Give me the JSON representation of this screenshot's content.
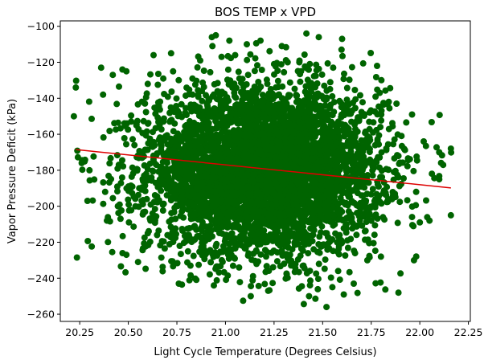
{
  "chart_data": {
    "type": "scatter",
    "title": "BOS TEMP x VPD",
    "xlabel": "Light Cycle Temperature (Degrees Celsius)",
    "ylabel": "Vapor Pressure Deficit (kPa)",
    "xlim": [
      20.15,
      22.26
    ],
    "ylim": [
      -264,
      -97
    ],
    "xticks": [
      20.25,
      20.5,
      20.75,
      21.0,
      21.25,
      21.5,
      21.75,
      22.0,
      22.25
    ],
    "xtick_labels": [
      "20.25",
      "20.50",
      "20.75",
      "21.00",
      "21.25",
      "21.50",
      "21.75",
      "22.00",
      "22.25"
    ],
    "yticks": [
      -260,
      -240,
      -220,
      -200,
      -180,
      -160,
      -140,
      -120,
      -100
    ],
    "ytick_labels": [
      "−260",
      "−240",
      "−220",
      "−200",
      "−180",
      "−160",
      "−140",
      "−120",
      "−100"
    ],
    "grid": false,
    "colors": {
      "points": "#006400",
      "trend": "#dd0000"
    },
    "trend_line": {
      "x": [
        20.23,
        22.16
      ],
      "y": [
        -168.5,
        -189.8
      ]
    },
    "cloud": {
      "x_center": 21.2,
      "x_sd": 0.3,
      "y_center": -180,
      "y_sd": 23,
      "count": 5000
    },
    "series": [
      {
        "values": [
          [
            20.23,
            -134
          ],
          [
            20.22,
            -150
          ],
          [
            20.26,
            -176
          ],
          [
            20.29,
            -197
          ],
          [
            20.3,
            -180
          ],
          [
            20.36,
            -123
          ],
          [
            20.37,
            -138
          ],
          [
            20.39,
            -208
          ],
          [
            20.42,
            -127
          ],
          [
            20.46,
            -207
          ],
          [
            20.47,
            -124
          ],
          [
            20.49,
            -125
          ],
          [
            20.49,
            -227
          ],
          [
            20.55,
            -231
          ],
          [
            20.6,
            -215
          ],
          [
            20.6,
            -132
          ],
          [
            20.63,
            -116
          ],
          [
            20.68,
            -129
          ],
          [
            20.72,
            -115
          ],
          [
            20.76,
            -243
          ],
          [
            20.82,
            -233
          ],
          [
            20.83,
            -129
          ],
          [
            20.87,
            -119
          ],
          [
            20.93,
            -106
          ],
          [
            20.95,
            -105
          ],
          [
            20.98,
            -117
          ],
          [
            21.02,
            -108
          ],
          [
            21.05,
            -116
          ],
          [
            21.11,
            -110
          ],
          [
            21.13,
            -250
          ],
          [
            21.18,
            -108
          ],
          [
            21.22,
            -247
          ],
          [
            21.29,
            -111
          ],
          [
            21.32,
            -120
          ],
          [
            21.38,
            -120
          ],
          [
            21.43,
            -250
          ],
          [
            21.48,
            -106
          ],
          [
            21.52,
            -256
          ],
          [
            21.55,
            -245
          ],
          [
            21.58,
            -236
          ],
          [
            21.6,
            -107
          ],
          [
            21.66,
            -243
          ],
          [
            21.73,
            -230
          ],
          [
            21.78,
            -122
          ],
          [
            21.8,
            -228
          ],
          [
            21.84,
            -142
          ],
          [
            21.88,
            -143
          ],
          [
            21.89,
            -248
          ],
          [
            21.96,
            -149
          ],
          [
            21.97,
            -230
          ],
          [
            22.0,
            -209
          ],
          [
            22.02,
            -164
          ],
          [
            22.05,
            -208
          ],
          [
            22.1,
            -185
          ],
          [
            22.1,
            -170
          ],
          [
            22.12,
            -177
          ],
          [
            22.16,
            -205
          ],
          [
            22.16,
            -168
          ]
        ]
      }
    ]
  }
}
